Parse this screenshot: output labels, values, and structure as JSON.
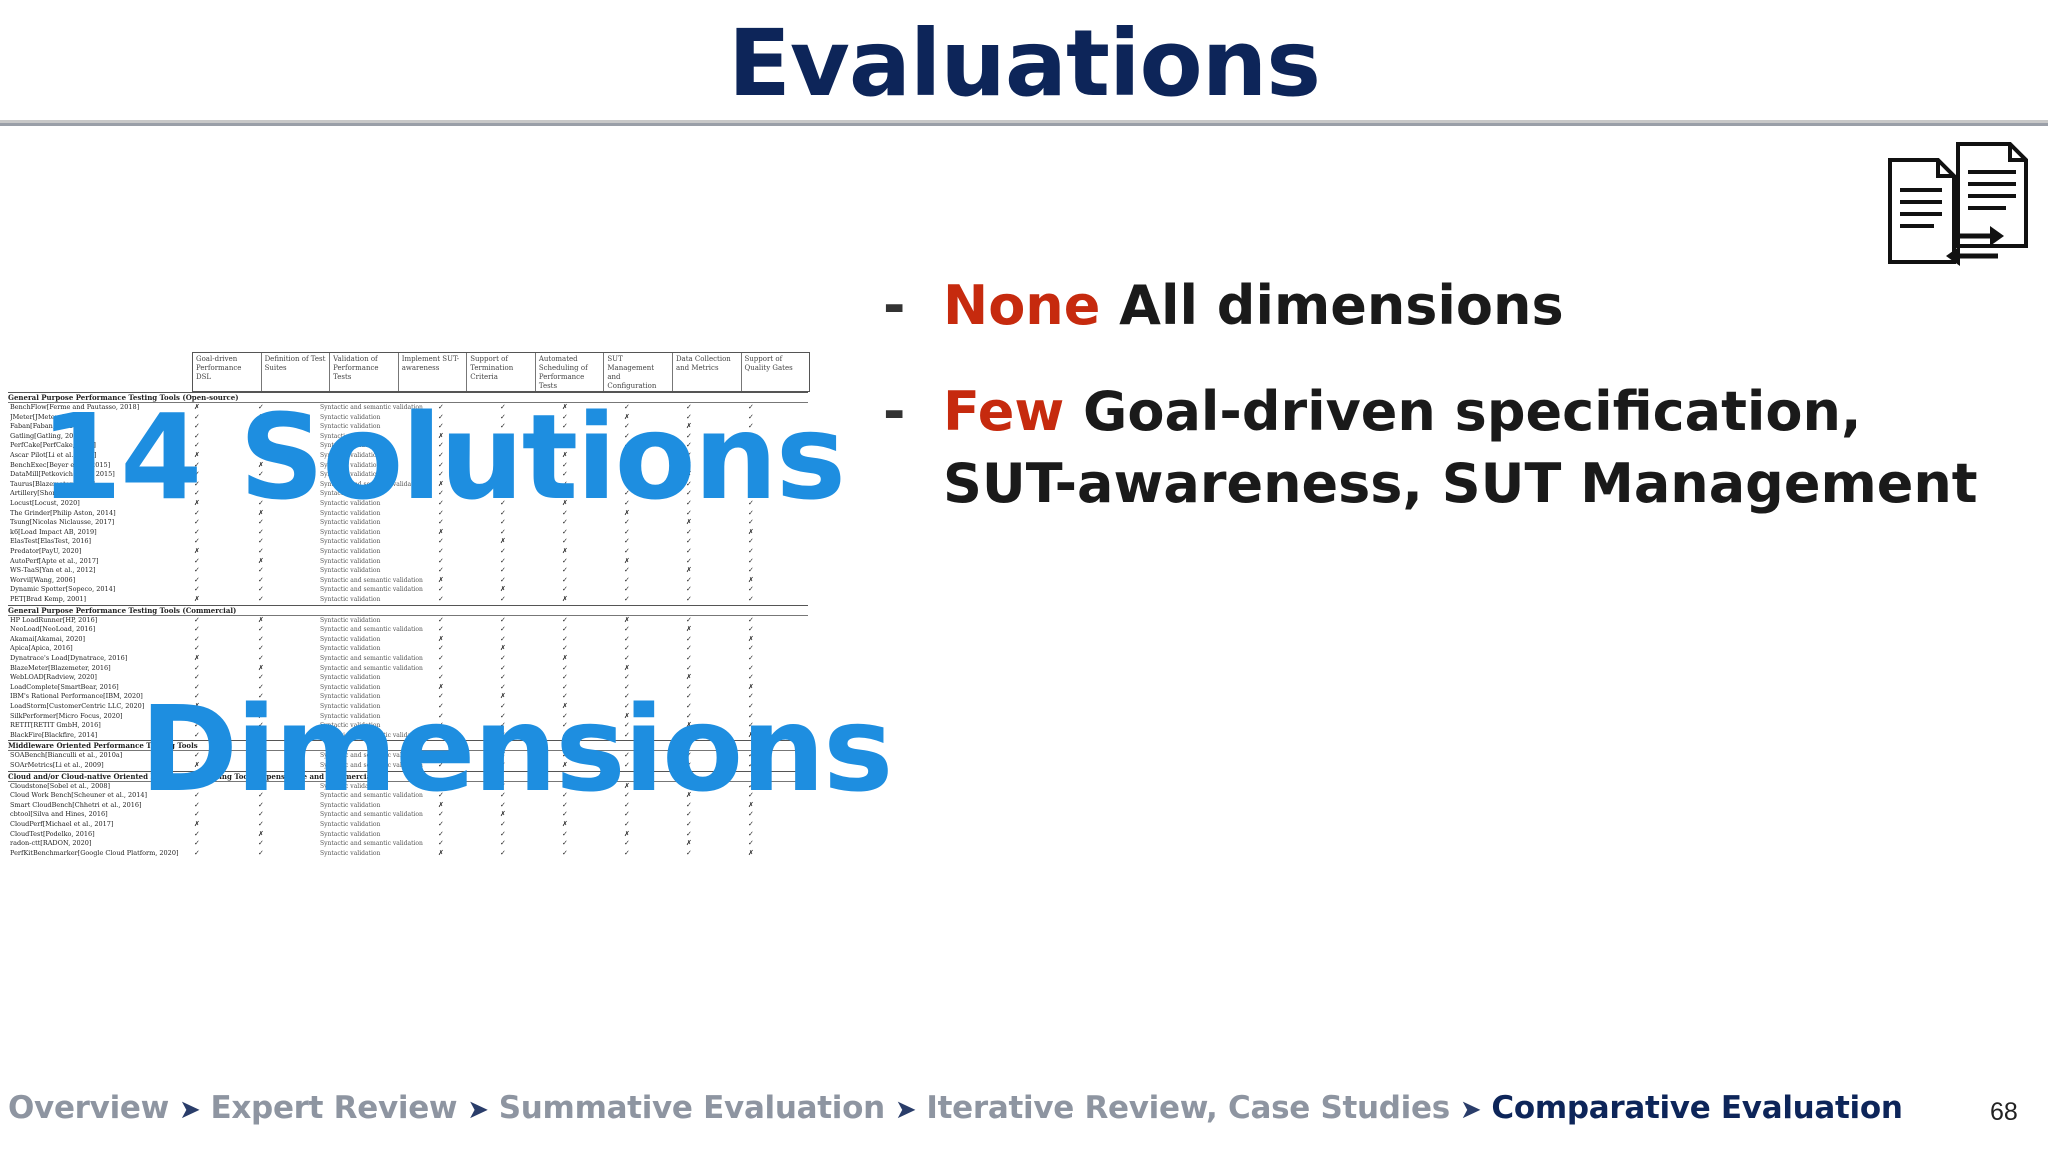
{
  "slide": {
    "title": "Evaluations",
    "bullets": [
      {
        "keyword": "None",
        "text": "All dimensions"
      },
      {
        "keyword": "Few",
        "text": "Goal-driven specification, SUT-awareness, SUT Management"
      }
    ],
    "overlay_solutions": "14 Solutions",
    "overlay_dimensions": "Dimensions",
    "breadcrumb": [
      {
        "label": "Overview"
      },
      {
        "label": "Expert Review"
      },
      {
        "label": "Summative Evaluation"
      },
      {
        "label": "Iterative Review, Case Studies"
      },
      {
        "label": "Comparative Evaluation"
      }
    ],
    "breadcrumb_separator": "➤",
    "page_number": "68"
  },
  "icons": {
    "document": "document-compare-icon"
  },
  "colors": {
    "title": "#0d2559",
    "keyword": "#c62a0e",
    "overlay": "#1e8ee0",
    "breadcrumb": "#8e95a1",
    "breadcrumb_active": "#0d2559"
  },
  "table": {
    "headers": [
      "Goal-driven Performance DSL",
      "Definition of Test Suites",
      "Validation of Performance Tests",
      "Implement SUT-awareness",
      "Support of Termination Criteria",
      "Automated Scheduling of Performance Tests",
      "SUT Management and Configuration",
      "Data Collection and Metrics",
      "Support of Quality Gates"
    ],
    "sections": [
      {
        "title": "General Purpose Performance Testing Tools (Open-source)",
        "rows": [
          {
            "name": "BenchFlow[Ferme and Pautasso, 2018]",
            "validation": "Syntactic and semantic validation"
          },
          {
            "name": "JMeter[JMeter, 1998]",
            "validation": "Syntactic validation"
          },
          {
            "name": "Faban[Faban, 2009]",
            "validation": "Syntactic validation"
          },
          {
            "name": "Gatling[Gatling, 2011]",
            "validation": "Syntactic validation"
          },
          {
            "name": "PerfCake[PerfCake, 2016]",
            "validation": "Syntactic validation"
          },
          {
            "name": "Ascar Pilot[Li et al., 2016]",
            "validation": "Syntactic validation"
          },
          {
            "name": "BenchExec[Beyer et al., 2015]",
            "validation": "Syntactic validation"
          },
          {
            "name": "DataMill[Petkovich et al., 2015]",
            "validation": "Syntactic validation"
          },
          {
            "name": "Taurus[Blazemeter, 2016]",
            "validation": "Syntactic and semantic validation"
          },
          {
            "name": "Artillery[Shoreditch Ops, 2017]",
            "validation": "Syntactic validation"
          },
          {
            "name": "Locust[Locust, 2020]",
            "validation": "Syntactic validation"
          },
          {
            "name": "The Grinder[Philip Aston, 2014]",
            "validation": "Syntactic validation"
          },
          {
            "name": "Tsung[Nicolas Niclausse, 2017]",
            "validation": "Syntactic validation"
          },
          {
            "name": "k6[Load Impact AB, 2019]",
            "validation": "Syntactic validation"
          },
          {
            "name": "ElasTest[ElasTest, 2016]",
            "validation": "Syntactic validation"
          },
          {
            "name": "Predator[PayU, 2020]",
            "validation": "Syntactic validation"
          },
          {
            "name": "AutoPerf[Apte et al., 2017]",
            "validation": "Syntactic validation"
          },
          {
            "name": "WS-TaaS[Yan et al., 2012]",
            "validation": "Syntactic validation"
          },
          {
            "name": "Worvil[Wang, 2006]",
            "validation": "Syntactic and semantic validation"
          },
          {
            "name": "Dynamic Spotter[Sopeco, 2014]",
            "validation": "Syntactic and semantic validation"
          },
          {
            "name": "PET[Brad Kemp, 2001]",
            "validation": "Syntactic validation"
          }
        ]
      },
      {
        "title": "General Purpose Performance Testing Tools (Commercial)",
        "rows": [
          {
            "name": "HP LoadRunner[HP, 2016]",
            "validation": "Syntactic validation"
          },
          {
            "name": "NeoLoad[NeoLoad, 2016]",
            "validation": "Syntactic and semantic validation"
          },
          {
            "name": "Akamai[Akamai, 2020]",
            "validation": "Syntactic validation"
          },
          {
            "name": "Apica[Apica, 2016]",
            "validation": "Syntactic validation"
          },
          {
            "name": "Dynatrace's Load[Dynatrace, 2016]",
            "validation": "Syntactic and semantic validation"
          },
          {
            "name": "BlazeMeter[Blazemeter, 2016]",
            "validation": "Syntactic and semantic validation"
          },
          {
            "name": "WebLOAD[Radview, 2020]",
            "validation": "Syntactic validation"
          },
          {
            "name": "LoadComplete[SmartBear, 2016]",
            "validation": "Syntactic validation"
          },
          {
            "name": "IBM's Rational Performance[IBM, 2020]",
            "validation": "Syntactic validation"
          },
          {
            "name": "LoadStorm[CustomerCentric LLC, 2020]",
            "validation": "Syntactic validation"
          },
          {
            "name": "SilkPerformer[Micro Focus, 2020]",
            "validation": "Syntactic validation"
          },
          {
            "name": "RETIT[RETIT GmbH, 2016]",
            "validation": "Syntactic validation"
          },
          {
            "name": "BlackFire[Blackfire, 2014]",
            "validation": "Syntactic and semantic validation"
          }
        ]
      },
      {
        "title": "Middleware Oriented Performance Testing Tools",
        "rows": [
          {
            "name": "SOABench[Bianculli et al., 2010a]",
            "validation": "Syntactic and semantic validation"
          },
          {
            "name": "SOArMetrics[Li et al., 2009]",
            "validation": "Syntactic and semantic validation"
          }
        ]
      },
      {
        "title": "Cloud and/or Cloud-native Oriented Performance Testing Tools (Opensource and Commercial)",
        "rows": [
          {
            "name": "Cloudstone[Sobel et al., 2008]",
            "validation": "Syntactic validation"
          },
          {
            "name": "Cloud Work Bench[Scheuner et al., 2014]",
            "validation": "Syntactic and semantic validation"
          },
          {
            "name": "Smart CloudBench[Chhetri et al., 2016]",
            "validation": "Syntactic validation"
          },
          {
            "name": "cbtool[Silva and Hines, 2016]",
            "validation": "Syntactic and semantic validation"
          },
          {
            "name": "CloudPerf[Michael et al., 2017]",
            "validation": "Syntactic validation"
          },
          {
            "name": "CloudTest[Podelko, 2016]",
            "validation": "Syntactic validation"
          },
          {
            "name": "radon-ctt[RADON, 2020]",
            "validation": "Syntactic and semantic validation"
          },
          {
            "name": "PerfKitBenchmarker[Google Cloud Platform, 2020]",
            "validation": "Syntactic validation"
          }
        ]
      }
    ],
    "marks": {
      "check": "✓",
      "cross": "✗"
    }
  }
}
